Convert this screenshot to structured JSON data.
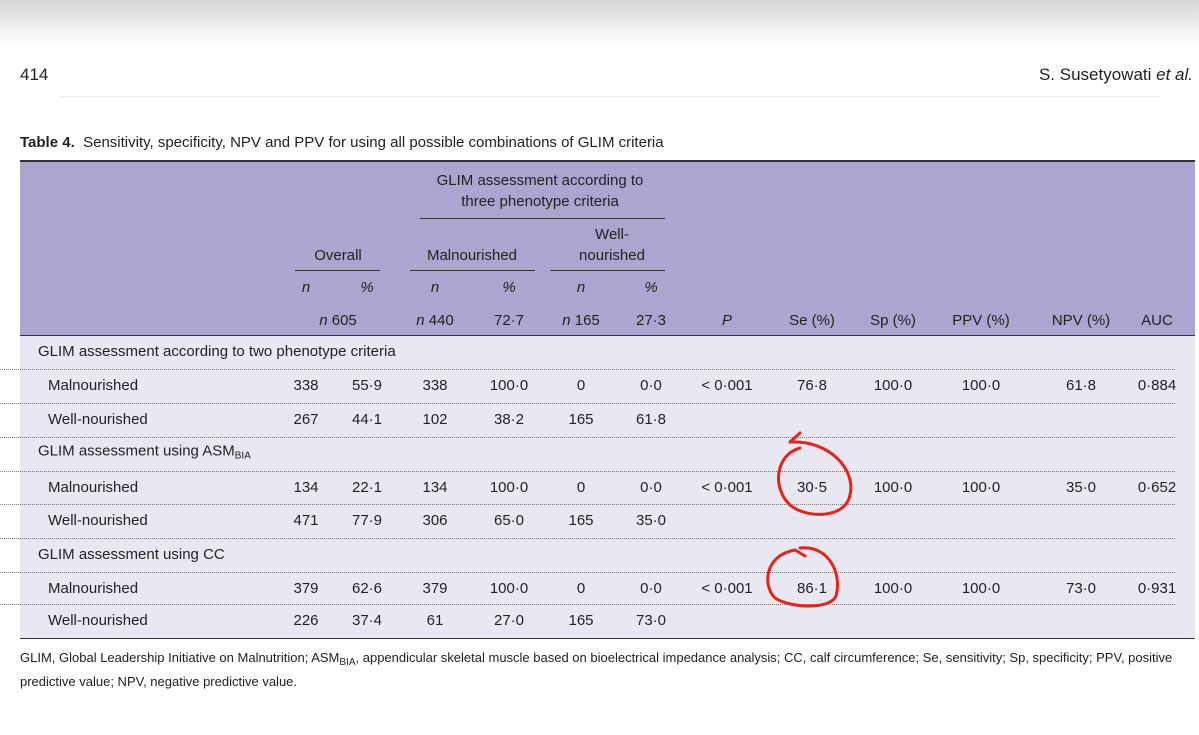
{
  "header": {
    "page": "414",
    "author": "S. Susetyowati",
    "author_suffix": "et al."
  },
  "caption": {
    "label": "Table 4.",
    "text": "Sensitivity, specificity, NPV and PPV for using all possible combinations of GLIM criteria"
  },
  "table": {
    "group_header": [
      "GLIM assessment according to",
      "three phenotype criteria"
    ],
    "columns": {
      "overall": "Overall",
      "malnourished": "Malnourished",
      "well_nourished": [
        "Well-",
        "nourished"
      ]
    },
    "subheaders": [
      "n",
      "%",
      "n",
      "%",
      "n",
      "%"
    ],
    "totals": {
      "prefix": "n",
      "overall_n": "605",
      "malnourished_n": "440",
      "malnourished_pct": "72·7",
      "well_n": "165",
      "well_pct": "27·3"
    },
    "metric_headers": [
      "P",
      "Se (%)",
      "Sp (%)",
      "PPV (%)",
      "NPV (%)",
      "AUC"
    ],
    "sections": [
      {
        "title": "GLIM assessment according to two phenotype criteria",
        "rows": [
          {
            "label": "Malnourished",
            "cells": [
              "338",
              "55·9",
              "338",
              "100·0",
              "0",
              "0·0",
              "< 0·001",
              "76·8",
              "100·0",
              "100·0",
              "61·8",
              "0·884"
            ]
          },
          {
            "label": "Well-nourished",
            "cells": [
              "267",
              "44·1",
              "102",
              "38·2",
              "165",
              "61·8"
            ]
          }
        ]
      },
      {
        "title": "GLIM assessment using ASM",
        "subscript": "BIA",
        "rows": [
          {
            "label": "Malnourished",
            "cells": [
              "134",
              "22·1",
              "134",
              "100·0",
              "0",
              "0·0",
              "< 0·001",
              "30·5",
              "100·0",
              "100·0",
              "35·0",
              "0·652"
            ]
          },
          {
            "label": "Well-nourished",
            "cells": [
              "471",
              "77·9",
              "306",
              "65·0",
              "165",
              "35·0"
            ]
          }
        ]
      },
      {
        "title": "GLIM assessment using CC",
        "rows": [
          {
            "label": "Malnourished",
            "cells": [
              "379",
              "62·6",
              "379",
              "100·0",
              "0",
              "0·0",
              "< 0·001",
              "86·1",
              "100·0",
              "100·0",
              "73·0",
              "0·931"
            ]
          },
          {
            "label": "Well-nourished",
            "cells": [
              "226",
              "37·4",
              "61",
              "27·0",
              "165",
              "73·0"
            ]
          }
        ]
      }
    ]
  },
  "footnote": {
    "before": "GLIM, Global Leadership Initiative on Malnutrition; ASM",
    "subscript": "BIA",
    "after": ", appendicular skeletal muscle based on bioelectrical impedance analysis; CC, calf circumference; Se, sensitivity; Sp, specificity; PPV, positive predictive value; NPV, negative predictive value."
  }
}
